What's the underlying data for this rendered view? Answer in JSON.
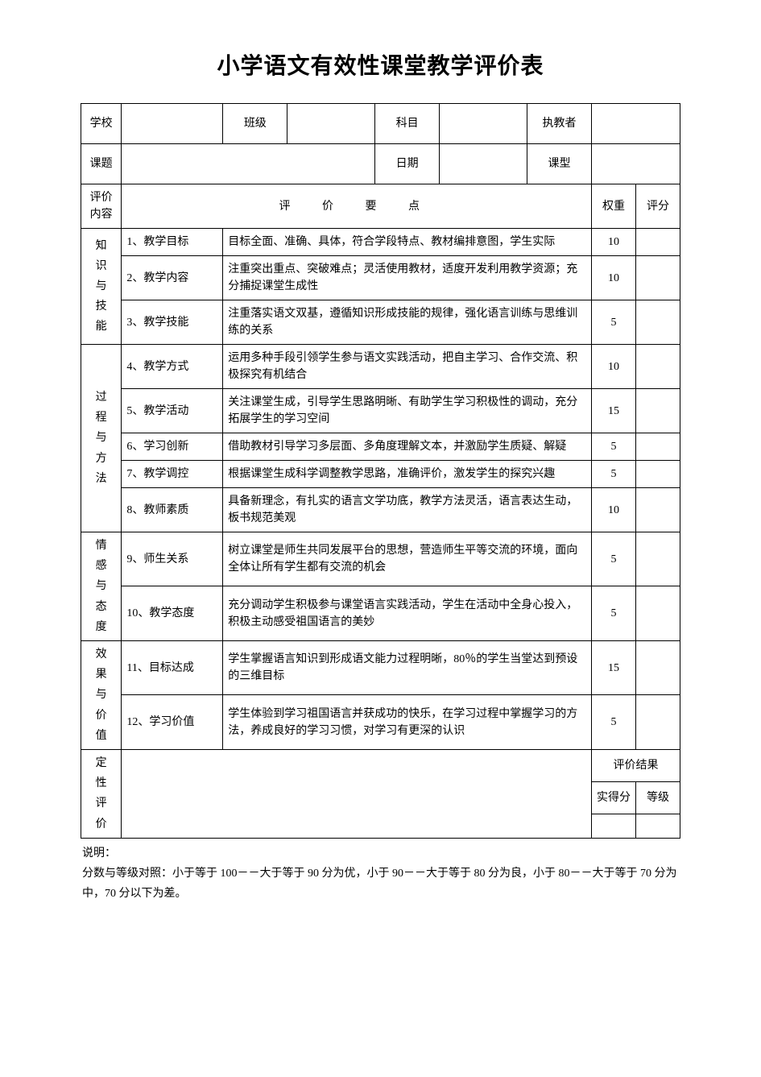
{
  "title": "小学语文有效性课堂教学评价表",
  "header": {
    "school_label": "学校",
    "class_label": "班级",
    "subject_label": "科目",
    "teacher_label": "执教者",
    "topic_label": "课题",
    "date_label": "日期",
    "type_label": "课型"
  },
  "columns": {
    "content_label": "评价内容",
    "points_label": "评 价 要 点",
    "weight_label": "权重",
    "score_label": "评分"
  },
  "sections": [
    {
      "name": "知识与技能",
      "rows": [
        {
          "idx": "1、教学目标",
          "desc": "目标全面、准确、具体，符合学段特点、教材编排意图，学生实际",
          "weight": "10"
        },
        {
          "idx": "2、教学内容",
          "desc": "注重突出重点、突破难点；灵活使用教材，适度开发利用教学资源；充分捕捉课堂生成性",
          "weight": "10"
        },
        {
          "idx": "3、教学技能",
          "desc": "注重落实语文双基，遵循知识形成技能的规律，强化语言训练与思维训练的关系",
          "weight": "5"
        }
      ]
    },
    {
      "name": "过程与方法",
      "rows": [
        {
          "idx": "4、教学方式",
          "desc": "运用多种手段引领学生参与语文实践活动，把自主学习、合作交流、积极探究有机结合",
          "weight": "10"
        },
        {
          "idx": "5、教学活动",
          "desc": "关注课堂生成，引导学生思路明晰、有助学生学习积极性的调动，充分拓展学生的学习空间",
          "weight": "15"
        },
        {
          "idx": "6、学习创新",
          "desc": "借助教材引导学习多层面、多角度理解文本，并激励学生质疑、解疑",
          "weight": "5"
        },
        {
          "idx": "7、教学调控",
          "desc": "根据课堂生成科学调整教学思路，准确评价，激发学生的探究兴趣",
          "weight": "5"
        },
        {
          "idx": "8、教师素质",
          "desc": "具备新理念，有扎实的语言文学功底，教学方法灵活，语言表达生动，板书规范美观",
          "weight": "10"
        }
      ]
    },
    {
      "name": "情感与态度",
      "rows": [
        {
          "idx": "9、师生关系",
          "desc": "树立课堂是师生共同发展平台的思想，营造师生平等交流的环境，面向全体让所有学生都有交流的机会",
          "weight": "5"
        },
        {
          "idx": "10、教学态度",
          "desc": "充分调动学生积极参与课堂语言实践活动，学生在活动中全身心投入，积极主动感受祖国语言的美妙",
          "weight": "5"
        }
      ]
    },
    {
      "name": "效果与价值",
      "rows": [
        {
          "idx": "11、目标达成",
          "desc": "学生掌握语言知识到形成语文能力过程明晰，80％的学生当堂达到预设的三维目标",
          "weight": "15"
        },
        {
          "idx": "12、学习价值",
          "desc": "学生体验到学习祖国语言并获成功的快乐，在学习过程中掌握学习的方法，养成良好的学习习惯，对学习有更深的认识",
          "weight": "5"
        }
      ]
    }
  ],
  "qualitative": {
    "label": "定性评价",
    "result_label": "评价结果",
    "actual_label": "实得分",
    "grade_label": "等级"
  },
  "note": {
    "label": "说明：",
    "text": "分数与等级对照：小于等于 100－－大于等于 90 分为优，小于 90－－大于等于 80 分为良，小于 80－－大于等于 70 分为中，70 分以下为差。"
  },
  "colors": {
    "bg": "#ffffff",
    "border": "#000000",
    "text": "#000000"
  }
}
